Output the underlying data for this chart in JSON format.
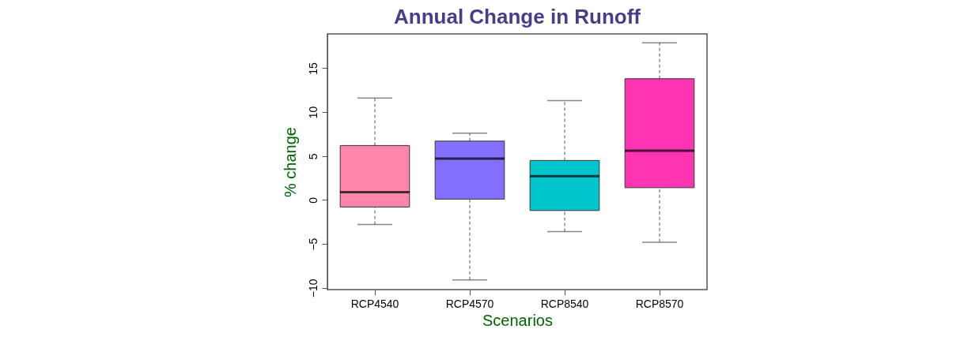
{
  "chart_data": {
    "type": "box",
    "title": "Annual Change in Runoff",
    "xlabel": "Scenarios",
    "ylabel": "% change",
    "categories": [
      "RCP4540",
      "RCP4570",
      "RCP8540",
      "RCP8570"
    ],
    "boxes": [
      {
        "low": -2.8,
        "q1": -0.8,
        "median": 0.9,
        "q3": 6.2,
        "high": 11.6
      },
      {
        "low": -9.1,
        "q1": 0.1,
        "median": 4.7,
        "q3": 6.7,
        "high": 7.6
      },
      {
        "low": -3.6,
        "q1": -1.2,
        "median": 2.7,
        "q3": 4.5,
        "high": 11.3
      },
      {
        "low": -4.8,
        "q1": 1.4,
        "median": 5.6,
        "q3": 13.8,
        "high": 17.9
      }
    ],
    "colors": [
      "#ff86a8",
      "#8470ff",
      "#00c5cd",
      "#ff34b3"
    ],
    "ylim": [
      -10.2,
      18.9
    ],
    "yticks": [
      -10,
      -5,
      0,
      5,
      10,
      15
    ],
    "grid": false
  }
}
